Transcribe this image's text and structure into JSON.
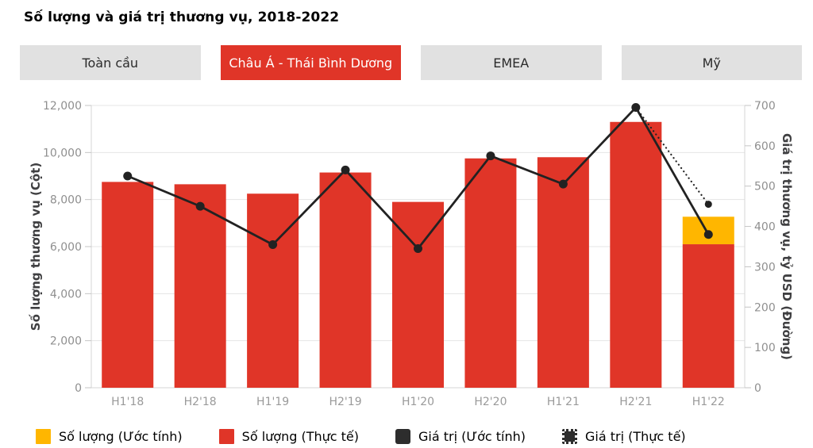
{
  "title": "Số lượng và giá trị thương vụ, 2018-2022",
  "tabs": [
    {
      "label": "Toàn cầu",
      "active": false
    },
    {
      "label": "Châu Á - Thái Bình Dương",
      "active": true
    },
    {
      "label": "EMEA",
      "active": false
    },
    {
      "label": "Mỹ",
      "active": false
    }
  ],
  "colors": {
    "red": "#E03528",
    "yellow": "#FFB600",
    "dark": "#2D2D2D",
    "line": "#222222",
    "grid": "#E4E4E4",
    "axis": "#D6D6D6",
    "tick": "#C4C4C4",
    "tick_text": "#8F8F8F",
    "tab_bg": "#E1E1E1",
    "tab_text": "#2B2B2B",
    "tab_active_text": "#FFFFFF"
  },
  "chart_data": {
    "type": "combo (bar + line)",
    "categories": [
      "H1'18",
      "H2'18",
      "H1'19",
      "H2'19",
      "H1'20",
      "H2'20",
      "H1'21",
      "H2'21",
      "H1'22"
    ],
    "series": [
      {
        "name": "Số lượng (Thực tế)",
        "type": "bar",
        "axis": "left",
        "color": "#E03528",
        "values": [
          8750,
          8650,
          8250,
          9150,
          7900,
          9750,
          9800,
          11300,
          6100
        ]
      },
      {
        "name": "Số lượng (Ước tính)",
        "type": "bar_stack_top",
        "axis": "left",
        "color": "#FFB600",
        "values": [
          null,
          null,
          null,
          null,
          null,
          null,
          null,
          null,
          7270
        ],
        "note": "total bar height including actual; yellow segment drawn from actual top to this value"
      },
      {
        "name": "Giá trị (Thực tế)",
        "type": "line",
        "axis": "right",
        "color": "#222222",
        "values": [
          525,
          450,
          355,
          540,
          345,
          575,
          505,
          695,
          380
        ]
      },
      {
        "name": "Giá trị (Ước tính)",
        "type": "line_dotted",
        "axis": "right",
        "color": "#222222",
        "values": [
          null,
          null,
          null,
          null,
          null,
          null,
          null,
          695,
          455
        ]
      }
    ],
    "left_axis": {
      "label": "Số lượng thương vụ (Cột)",
      "min": 0,
      "max": 12000,
      "step": 2000
    },
    "right_axis": {
      "label": "Giá trị thương vụ, tỷ USD (Đường)",
      "min": 0,
      "max": 700,
      "step": 100
    },
    "grid": "horizontal gridlines at left-axis ticks",
    "legend_position": "bottom-left"
  },
  "legend": [
    {
      "label": "Số lượng (Ước tính)",
      "marker": "square",
      "color": "#FFB600"
    },
    {
      "label": "Số lượng (Thực tế)",
      "marker": "square",
      "color": "#E03528"
    },
    {
      "label": "Giá trị (Ước tính)",
      "marker": "square-solid",
      "color": "#2D2D2D"
    },
    {
      "label": "Giá trị (Thực tế)",
      "marker": "square-dotted",
      "color": "#2D2D2D"
    }
  ]
}
